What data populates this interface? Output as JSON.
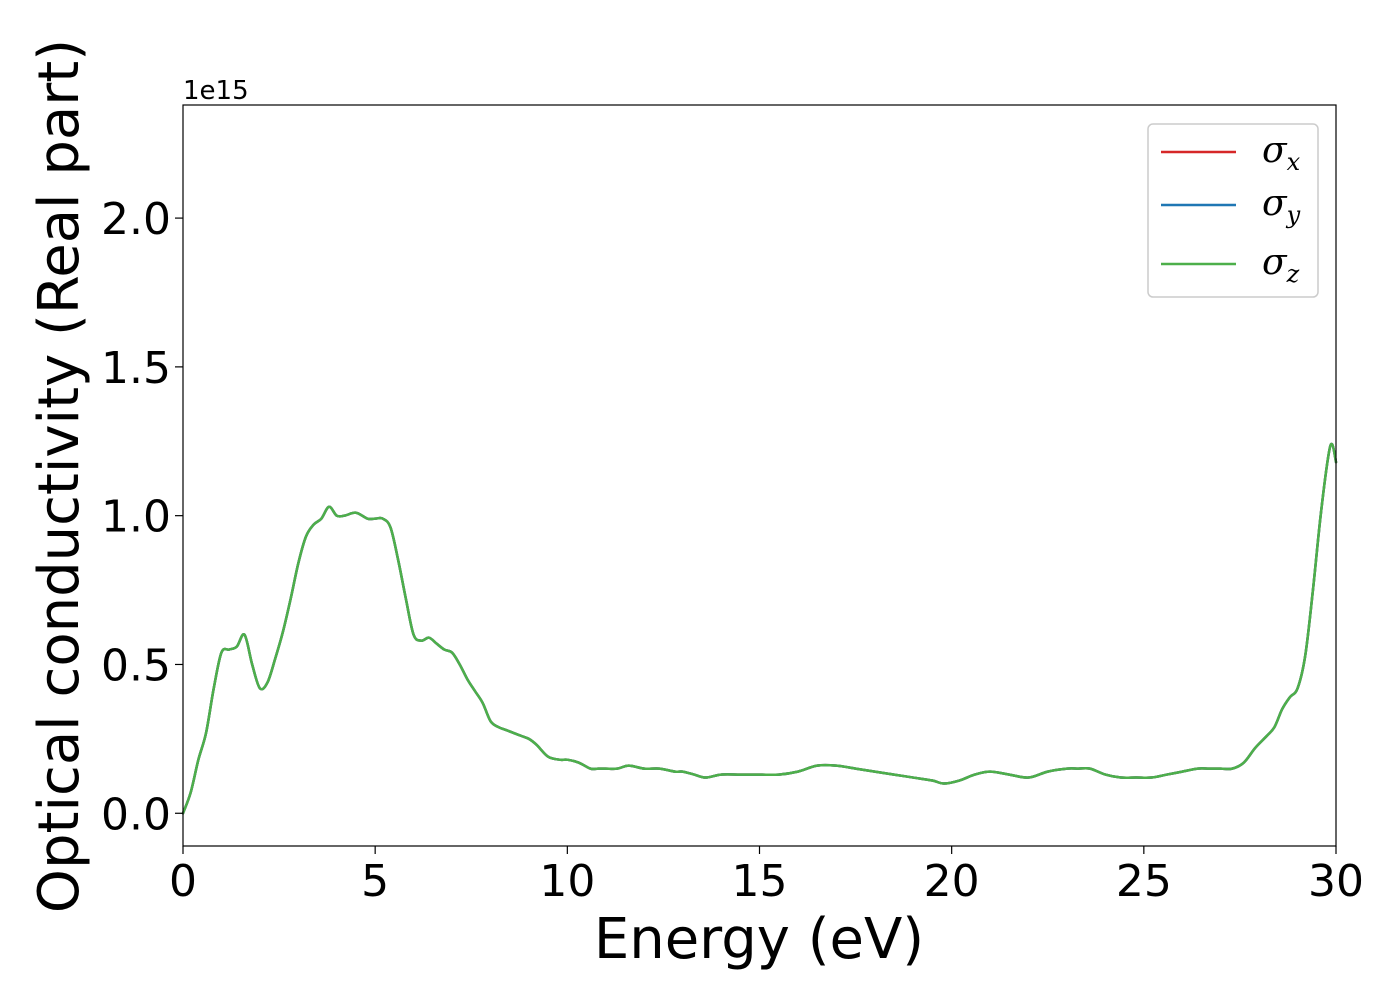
{
  "chart_data": {
    "type": "line",
    "title": "",
    "xlabel": "Energy (eV)",
    "ylabel": "Optical conductivity (Real part)",
    "y_offset_label": "1e15",
    "xlim": [
      0,
      30
    ],
    "ylim": [
      -0.11,
      2.38
    ],
    "xticks": [
      0,
      5,
      10,
      15,
      20,
      25,
      30
    ],
    "yticks": [
      0.0,
      0.5,
      1.0,
      1.5,
      2.0
    ],
    "xtick_labels": [
      "0",
      "5",
      "10",
      "15",
      "20",
      "25",
      "30"
    ],
    "ytick_labels": [
      "0.0",
      "0.5",
      "1.0",
      "1.5",
      "2.0"
    ],
    "grid": false,
    "legend_position": "top-right",
    "x": [
      0,
      0.2,
      0.4,
      0.6,
      0.8,
      1.0,
      1.2,
      1.4,
      1.6,
      1.8,
      2.0,
      2.2,
      2.4,
      2.6,
      2.8,
      3.0,
      3.2,
      3.4,
      3.6,
      3.8,
      4.0,
      4.2,
      4.5,
      4.8,
      5.0,
      5.2,
      5.4,
      5.6,
      5.8,
      6.0,
      6.2,
      6.4,
      6.6,
      6.8,
      7.0,
      7.2,
      7.4,
      7.6,
      7.8,
      8.0,
      8.2,
      8.4,
      8.6,
      8.8,
      9.0,
      9.2,
      9.5,
      9.8,
      10.0,
      10.3,
      10.6,
      10.8,
      11.0,
      11.3,
      11.6,
      12.0,
      12.4,
      12.8,
      13.0,
      13.3,
      13.6,
      14.0,
      14.5,
      15.0,
      15.5,
      16.0,
      16.5,
      17.0,
      17.5,
      18.0,
      18.5,
      19.0,
      19.5,
      19.8,
      20.2,
      20.6,
      21.0,
      21.5,
      22.0,
      22.5,
      23.0,
      23.3,
      23.6,
      24.0,
      24.4,
      24.8,
      25.2,
      25.6,
      26.0,
      26.4,
      26.7,
      27.0,
      27.3,
      27.6,
      27.9,
      28.2,
      28.4,
      28.6,
      28.8,
      29.0,
      29.2,
      29.4,
      29.6,
      29.8,
      29.9,
      30.0
    ],
    "series": [
      {
        "name": "σx",
        "color": "#d62728",
        "values": [
          0.0,
          0.07,
          0.18,
          0.27,
          0.42,
          0.54,
          0.55,
          0.56,
          0.6,
          0.5,
          0.42,
          0.44,
          0.52,
          0.61,
          0.72,
          0.84,
          0.93,
          0.97,
          0.99,
          1.03,
          1.0,
          1.0,
          1.01,
          0.99,
          0.99,
          0.99,
          0.96,
          0.85,
          0.72,
          0.6,
          0.58,
          0.59,
          0.57,
          0.55,
          0.54,
          0.5,
          0.45,
          0.41,
          0.37,
          0.31,
          0.29,
          0.28,
          0.27,
          0.26,
          0.25,
          0.23,
          0.19,
          0.18,
          0.18,
          0.17,
          0.15,
          0.15,
          0.15,
          0.15,
          0.16,
          0.15,
          0.15,
          0.14,
          0.14,
          0.13,
          0.12,
          0.13,
          0.13,
          0.13,
          0.13,
          0.14,
          0.16,
          0.16,
          0.15,
          0.14,
          0.13,
          0.12,
          0.11,
          0.1,
          0.11,
          0.13,
          0.14,
          0.13,
          0.12,
          0.14,
          0.15,
          0.15,
          0.15,
          0.13,
          0.12,
          0.12,
          0.12,
          0.13,
          0.14,
          0.15,
          0.15,
          0.15,
          0.15,
          0.17,
          0.22,
          0.26,
          0.29,
          0.35,
          0.39,
          0.42,
          0.53,
          0.75,
          1.0,
          1.2,
          1.24,
          1.18
        ]
      },
      {
        "name": "σy",
        "color": "#1f77b4",
        "values": [
          0.0,
          0.07,
          0.18,
          0.27,
          0.42,
          0.54,
          0.55,
          0.56,
          0.6,
          0.5,
          0.42,
          0.44,
          0.52,
          0.61,
          0.72,
          0.84,
          0.93,
          0.97,
          0.99,
          1.03,
          1.0,
          1.0,
          1.01,
          0.99,
          0.99,
          0.99,
          0.96,
          0.85,
          0.72,
          0.6,
          0.58,
          0.59,
          0.57,
          0.55,
          0.54,
          0.5,
          0.45,
          0.41,
          0.37,
          0.31,
          0.29,
          0.28,
          0.27,
          0.26,
          0.25,
          0.23,
          0.19,
          0.18,
          0.18,
          0.17,
          0.15,
          0.15,
          0.15,
          0.15,
          0.16,
          0.15,
          0.15,
          0.14,
          0.14,
          0.13,
          0.12,
          0.13,
          0.13,
          0.13,
          0.13,
          0.14,
          0.16,
          0.16,
          0.15,
          0.14,
          0.13,
          0.12,
          0.11,
          0.1,
          0.11,
          0.13,
          0.14,
          0.13,
          0.12,
          0.14,
          0.15,
          0.15,
          0.15,
          0.13,
          0.12,
          0.12,
          0.12,
          0.13,
          0.14,
          0.15,
          0.15,
          0.15,
          0.15,
          0.17,
          0.22,
          0.26,
          0.29,
          0.35,
          0.39,
          0.42,
          0.53,
          0.75,
          1.0,
          1.2,
          1.24,
          1.18
        ]
      },
      {
        "name": "σz",
        "color": "#4daf4a",
        "values": [
          0.0,
          0.07,
          0.18,
          0.27,
          0.42,
          0.54,
          0.55,
          0.56,
          0.6,
          0.5,
          0.42,
          0.44,
          0.52,
          0.61,
          0.72,
          0.84,
          0.93,
          0.97,
          0.99,
          1.03,
          1.0,
          1.0,
          1.01,
          0.99,
          0.99,
          0.99,
          0.96,
          0.85,
          0.72,
          0.6,
          0.58,
          0.59,
          0.57,
          0.55,
          0.54,
          0.5,
          0.45,
          0.41,
          0.37,
          0.31,
          0.29,
          0.28,
          0.27,
          0.26,
          0.25,
          0.23,
          0.19,
          0.18,
          0.18,
          0.17,
          0.15,
          0.15,
          0.15,
          0.15,
          0.16,
          0.15,
          0.15,
          0.14,
          0.14,
          0.13,
          0.12,
          0.13,
          0.13,
          0.13,
          0.13,
          0.14,
          0.16,
          0.16,
          0.15,
          0.14,
          0.13,
          0.12,
          0.11,
          0.1,
          0.11,
          0.13,
          0.14,
          0.13,
          0.12,
          0.14,
          0.15,
          0.15,
          0.15,
          0.13,
          0.12,
          0.12,
          0.12,
          0.13,
          0.14,
          0.15,
          0.15,
          0.15,
          0.15,
          0.17,
          0.22,
          0.26,
          0.29,
          0.35,
          0.39,
          0.42,
          0.53,
          0.75,
          1.0,
          1.2,
          1.24,
          1.18
        ]
      }
    ],
    "legend": [
      {
        "symbol": "σ",
        "subscript": "x",
        "color": "#d62728"
      },
      {
        "symbol": "σ",
        "subscript": "y",
        "color": "#1f77b4"
      },
      {
        "symbol": "σ",
        "subscript": "z",
        "color": "#4daf4a"
      }
    ]
  }
}
